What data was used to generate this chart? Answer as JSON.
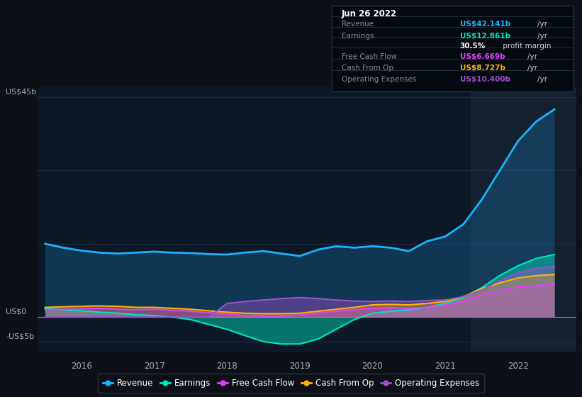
{
  "background_color": "#0d1117",
  "chart_bg": "#0d1827",
  "x_years": [
    2015.5,
    2015.75,
    2016.0,
    2016.25,
    2016.5,
    2016.75,
    2017.0,
    2017.25,
    2017.5,
    2017.75,
    2018.0,
    2018.25,
    2018.5,
    2018.75,
    2019.0,
    2019.25,
    2019.5,
    2019.75,
    2020.0,
    2020.25,
    2020.5,
    2020.75,
    2021.0,
    2021.25,
    2021.5,
    2021.75,
    2022.0,
    2022.25,
    2022.5
  ],
  "revenue": [
    15.0,
    14.2,
    13.6,
    13.2,
    13.0,
    13.2,
    13.4,
    13.2,
    13.1,
    12.9,
    12.8,
    13.2,
    13.5,
    13.0,
    12.5,
    13.8,
    14.5,
    14.2,
    14.5,
    14.2,
    13.5,
    15.5,
    16.5,
    19.0,
    24.0,
    30.0,
    36.0,
    40.0,
    42.5
  ],
  "earnings": [
    1.8,
    1.5,
    1.3,
    1.0,
    0.8,
    0.5,
    0.3,
    0.0,
    -0.5,
    -1.5,
    -2.5,
    -3.8,
    -5.0,
    -5.5,
    -5.5,
    -4.5,
    -2.5,
    -0.5,
    0.8,
    1.2,
    1.5,
    2.0,
    2.8,
    4.0,
    6.0,
    8.5,
    10.5,
    12.0,
    12.8
  ],
  "free_cf": [
    1.5,
    1.6,
    1.7,
    1.8,
    1.6,
    1.5,
    1.6,
    1.4,
    1.2,
    0.9,
    0.6,
    0.3,
    0.2,
    0.2,
    0.4,
    0.8,
    1.2,
    1.5,
    1.8,
    1.9,
    1.8,
    2.0,
    2.5,
    3.2,
    4.5,
    5.5,
    6.2,
    6.5,
    6.7
  ],
  "cash_from_op": [
    2.0,
    2.1,
    2.2,
    2.3,
    2.2,
    2.0,
    2.0,
    1.8,
    1.6,
    1.3,
    1.0,
    0.8,
    0.7,
    0.7,
    0.8,
    1.2,
    1.6,
    2.0,
    2.5,
    2.6,
    2.5,
    2.8,
    3.2,
    4.2,
    5.8,
    7.0,
    8.0,
    8.5,
    8.7
  ],
  "op_expenses": [
    0.0,
    0.0,
    0.0,
    0.0,
    0.0,
    0.0,
    0.0,
    0.0,
    0.0,
    0.0,
    2.8,
    3.2,
    3.5,
    3.8,
    4.0,
    3.8,
    3.5,
    3.3,
    3.2,
    3.3,
    3.2,
    3.4,
    3.5,
    4.2,
    5.5,
    7.5,
    9.0,
    10.0,
    10.4
  ],
  "ylim": [
    -7,
    47
  ],
  "xlim": [
    2015.4,
    2022.8
  ],
  "ytick_positions": [
    -5,
    0,
    45
  ],
  "ytick_labels": [
    "-US$5b",
    "US$0",
    "US$45b"
  ],
  "xticks": [
    2016,
    2017,
    2018,
    2019,
    2020,
    2021,
    2022
  ],
  "highlight_x_start": 2021.35,
  "highlight_x_end": 2022.8,
  "revenue_color": "#1ab3ff",
  "earnings_color": "#00e5c0",
  "free_cf_color": "#e040fb",
  "cash_from_op_color": "#ffb300",
  "op_expenses_color": "#9b4fcc",
  "legend_items": [
    {
      "label": "Revenue",
      "color": "#1ab3ff"
    },
    {
      "label": "Earnings",
      "color": "#00e5c0"
    },
    {
      "label": "Free Cash Flow",
      "color": "#e040fb"
    },
    {
      "label": "Cash From Op",
      "color": "#ffb300"
    },
    {
      "label": "Operating Expenses",
      "color": "#9b4fcc"
    }
  ],
  "info_box": {
    "date": "Jun 26 2022",
    "rows": [
      {
        "label": "Revenue",
        "value": "US$42.141b",
        "unit": "/yr",
        "color": "#1ab3ff"
      },
      {
        "label": "Earnings",
        "value": "US$12.861b",
        "unit": "/yr",
        "color": "#00e5c0"
      },
      {
        "label": "",
        "value": "30.5%",
        "unit": " profit margin",
        "color": "#ffffff"
      },
      {
        "label": "Free Cash Flow",
        "value": "US$6.669b",
        "unit": "/yr",
        "color": "#e040fb"
      },
      {
        "label": "Cash From Op",
        "value": "US$8.727b",
        "unit": "/yr",
        "color": "#ffb300"
      },
      {
        "label": "Operating Expenses",
        "value": "US$10.400b",
        "unit": "/yr",
        "color": "#9b4fcc"
      }
    ]
  }
}
